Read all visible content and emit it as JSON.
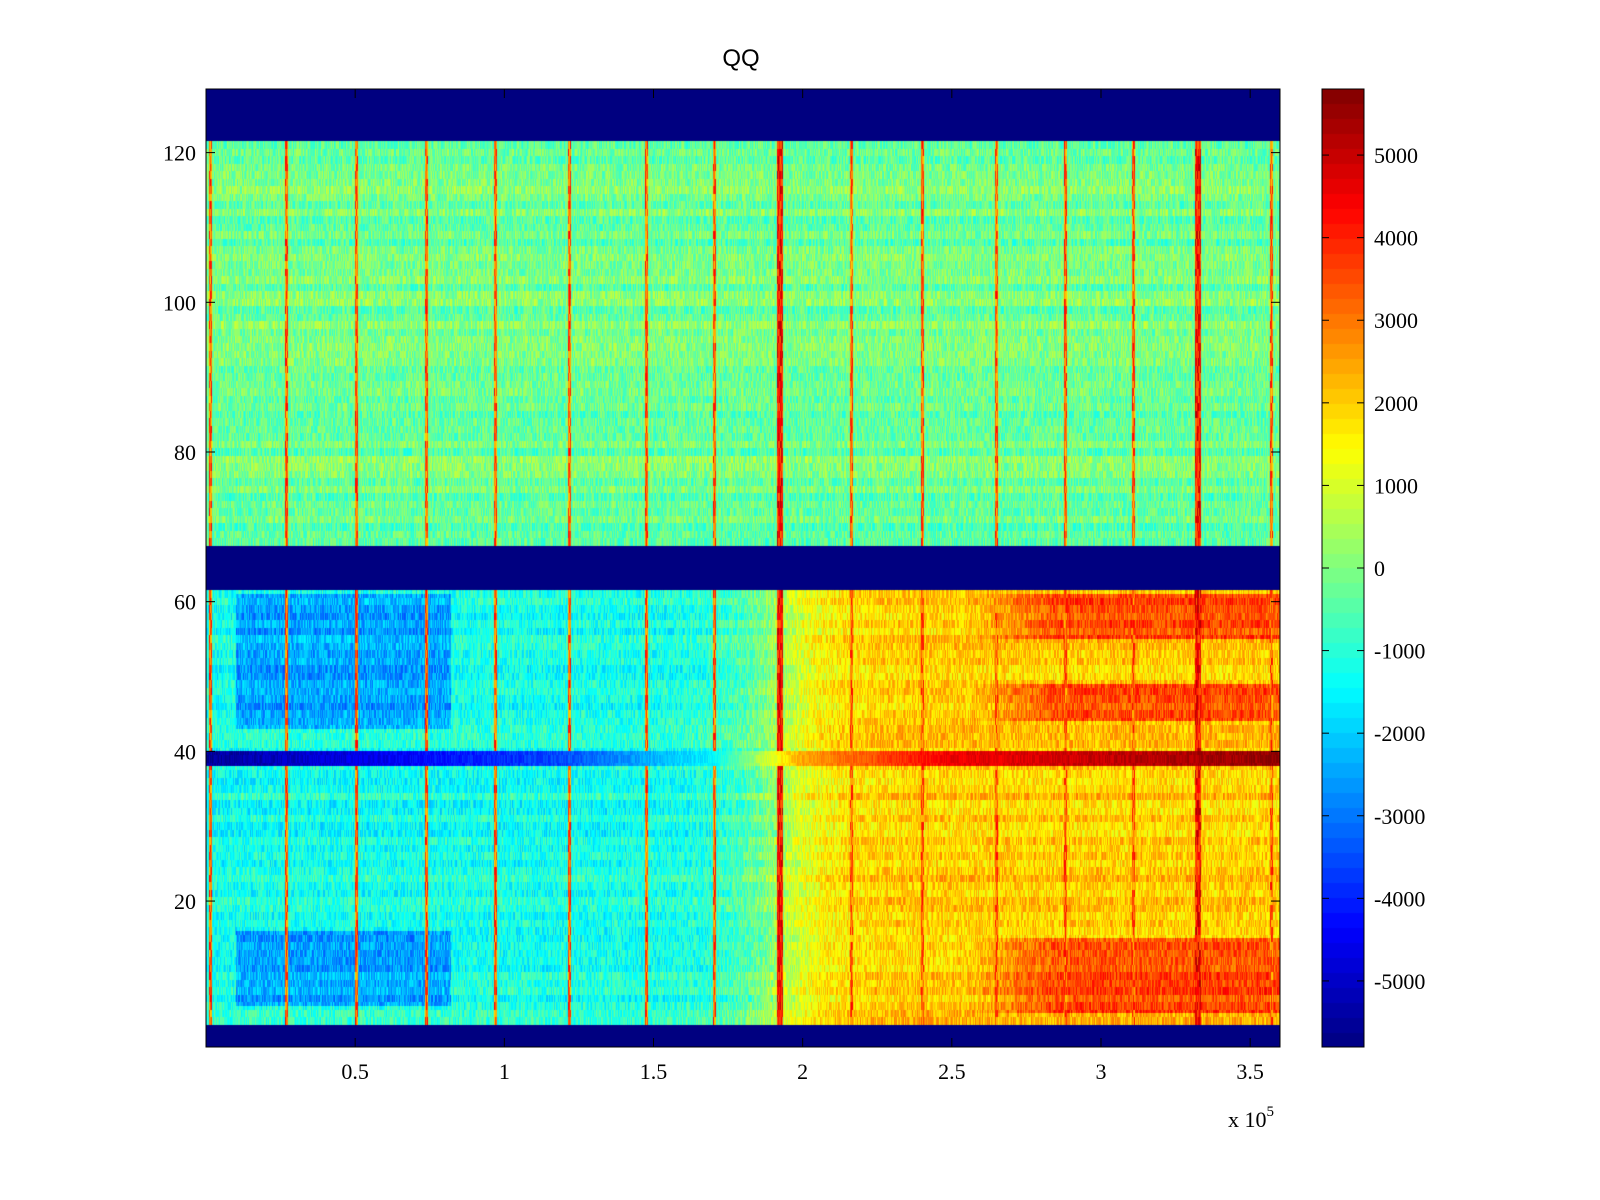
{
  "chart_data": {
    "type": "heatmap",
    "title": "QQ",
    "xlabel": "",
    "ylabel": "",
    "x_multiplier_label": "x 10",
    "x_multiplier_exponent": "5",
    "xlim": [
      0,
      360000
    ],
    "ylim": [
      0.5,
      128.5
    ],
    "x_ticks": [
      50000,
      100000,
      150000,
      200000,
      250000,
      300000,
      350000
    ],
    "x_tick_labels": [
      "0.5",
      "1",
      "1.5",
      "2",
      "2.5",
      "3",
      "3.5"
    ],
    "y_ticks": [
      20,
      40,
      60,
      80,
      100,
      120
    ],
    "y_tick_labels": [
      "20",
      "40",
      "60",
      "80",
      "100",
      "120"
    ],
    "colorbar": {
      "range": [
        -5800,
        5800
      ],
      "ticks": [
        -5000,
        -4000,
        -3000,
        -2000,
        -1000,
        0,
        1000,
        2000,
        3000,
        4000,
        5000
      ],
      "tick_labels": [
        "-5000",
        "-4000",
        "-3000",
        "-2000",
        "-1000",
        "0",
        "1000",
        "2000",
        "3000",
        "4000",
        "5000"
      ],
      "colormap": "jet"
    },
    "masked_row_bands": [
      [
        0.5,
        3.5
      ],
      [
        61.5,
        67.5
      ],
      [
        121.5,
        128.5
      ]
    ],
    "masked_value": -5800,
    "vertical_stripe_x": [
      1500,
      27000,
      50500,
      74000,
      97000,
      122000,
      147500,
      170500,
      192500,
      216500,
      240000,
      265000,
      288000,
      311000,
      332500,
      357000
    ],
    "stripe_value": 3200,
    "strong_stripe_x": [
      192500,
      332500
    ],
    "upper_panel_mean": -200,
    "lower_left_mean": -1200,
    "lower_right_mean": 2000,
    "transition_x": 192000,
    "lower_right_hot_rows": [
      [
        5,
        15
      ],
      [
        44,
        49
      ],
      [
        55,
        61
      ]
    ],
    "lower_right_hot_value": 3500,
    "lower_left_cold_rows": [
      [
        6,
        16
      ],
      [
        43,
        61
      ]
    ],
    "lower_left_cold_x": [
      10000,
      82000
    ],
    "lower_left_cold_value": -3500,
    "row_39": {
      "y": [
        38,
        40
      ],
      "x": [
        0,
        120000,
        170000,
        200000,
        250000,
        360000
      ],
      "value": [
        -5500,
        -3500,
        -1500,
        2500,
        4500,
        5600
      ]
    }
  }
}
